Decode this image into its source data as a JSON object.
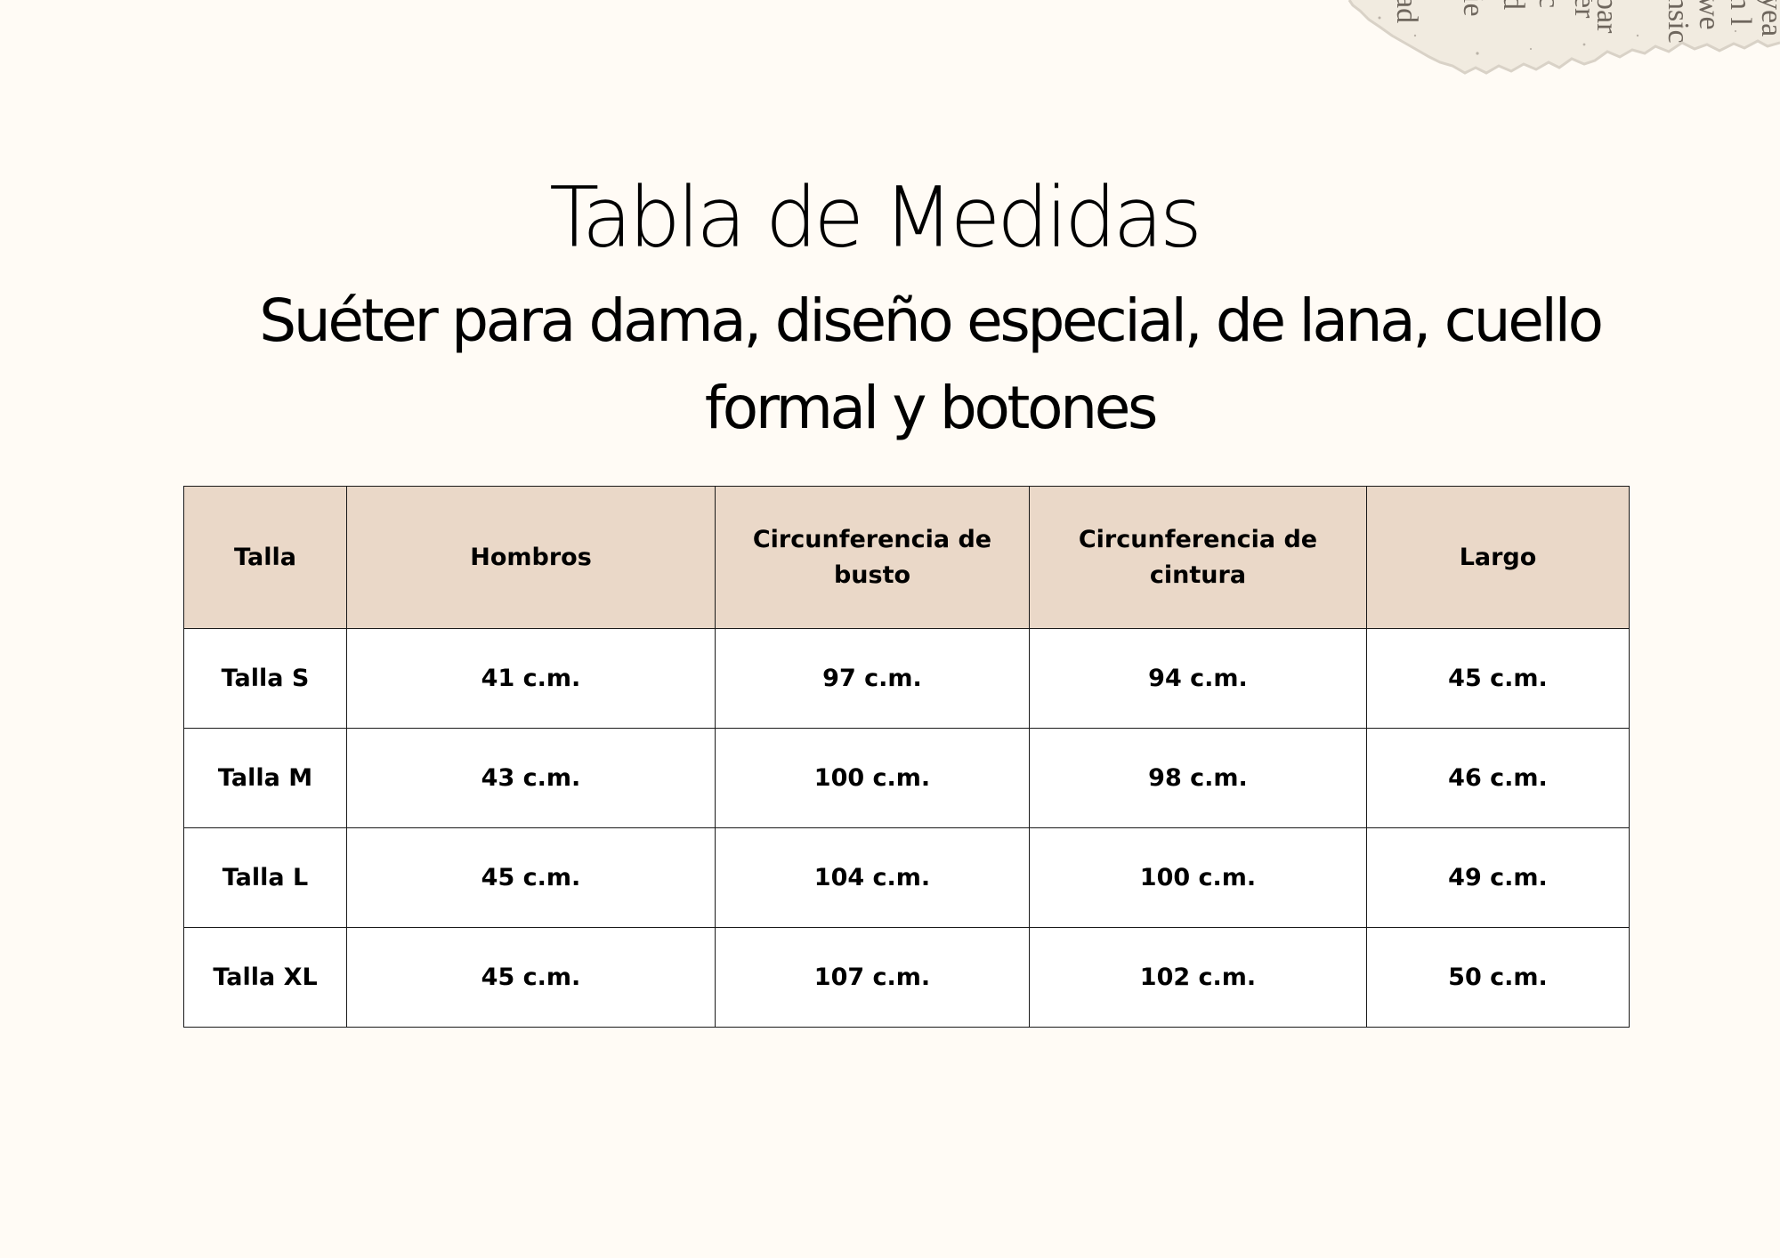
{
  "title": "Tabla de Medidas",
  "subtitle": "Suéter para dama, diseño especial, de lana, cuello formal y botones",
  "table": {
    "header_color": "#ead8c8",
    "columns": [
      "Talla",
      "Hombros",
      "Circunferencia de busto",
      "Circunferencia de cintura",
      "Largo"
    ],
    "rows": [
      [
        "Talla S",
        "41 c.m.",
        "97 c.m.",
        "94 c.m.",
        "45 c.m."
      ],
      [
        "Talla M",
        "43 c.m.",
        "100 c.m.",
        "98 c.m.",
        "46 c.m."
      ],
      [
        "Talla L",
        "45 c.m.",
        "104 c.m.",
        "100 c.m.",
        "49 c.m."
      ],
      [
        "Talla XL",
        "45 c.m.",
        "107 c.m.",
        "102 c.m.",
        "50 c.m."
      ]
    ]
  }
}
